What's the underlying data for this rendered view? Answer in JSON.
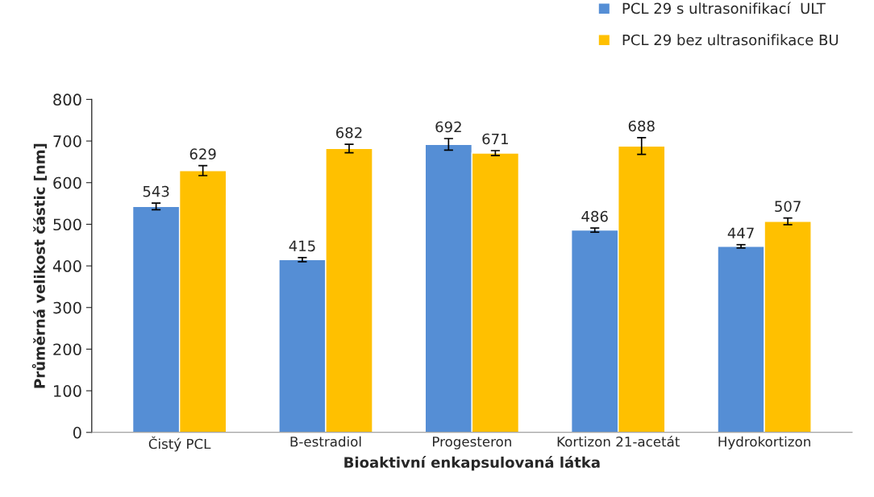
{
  "chart_data": {
    "type": "bar",
    "xlabel": "Bioaktivní enkapsulovaná látka",
    "ylabel": "Průměrná velikost částic [nm]",
    "categories": [
      "Čistý PCL",
      "B-estradiol",
      "Progesteron",
      "Kortizon 21-acetát",
      "Hydrokortizon"
    ],
    "series": [
      {
        "name": "PCL 29 s ultrasonifikací  ULT",
        "color": "#558ed5",
        "values": [
          543,
          415,
          692,
          486,
          447
        ],
        "errors": [
          8,
          5,
          14,
          5,
          4
        ]
      },
      {
        "name": "PCL 29 bez ultrasonifikace BU",
        "color": "#ffc000",
        "values": [
          629,
          682,
          671,
          688,
          507
        ],
        "errors": [
          12,
          10,
          6,
          20,
          8
        ]
      }
    ],
    "ylim": [
      0,
      800
    ],
    "yticks": [
      0,
      100,
      200,
      300,
      400,
      500,
      600,
      700,
      800
    ],
    "grid": false,
    "legend": "top right",
    "data_labels": true
  }
}
